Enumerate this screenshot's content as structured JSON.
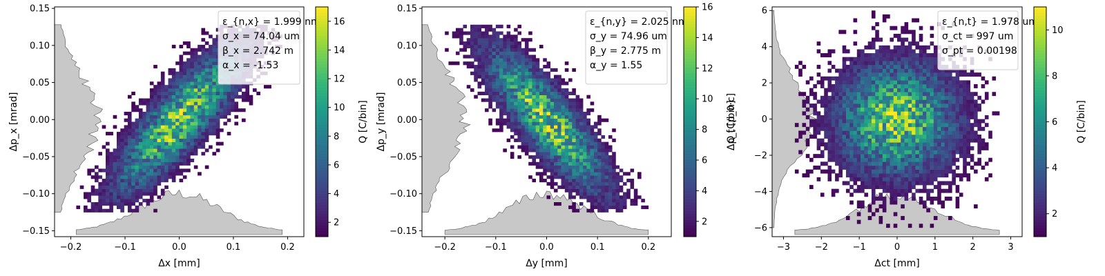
{
  "colorscale": [
    "#440154",
    "#482878",
    "#3e4a89",
    "#31688e",
    "#26828e",
    "#1f9e89",
    "#35b779",
    "#6ece58",
    "#b5de2b",
    "#fde725"
  ],
  "profile_color": "#c8c8c8",
  "chart_data": [
    {
      "type": "heatmap",
      "xlabel": "Δx [mm]",
      "ylabel": "Δp_x [mrad]",
      "colorbar_label": "Q [C/bin]",
      "xlim": [
        -0.23,
        0.23
      ],
      "ylim": [
        -0.158,
        0.152
      ],
      "xticks": [
        -0.2,
        -0.1,
        0.0,
        0.1,
        0.2
      ],
      "xtick_labels": [
        "−0.2",
        "−0.1",
        "0.0",
        "0.1",
        "0.2"
      ],
      "yticks": [
        -0.15,
        -0.1,
        -0.05,
        0.0,
        0.05,
        0.1,
        0.15
      ],
      "ytick_labels": [
        "−0.15",
        "−0.10",
        "−0.05",
        "0.00",
        "0.05",
        "0.10",
        "0.15"
      ],
      "clim": [
        1,
        17
      ],
      "cticks": [
        2,
        4,
        6,
        8,
        10,
        12,
        14,
        16
      ],
      "legend": [
        "ε_{n,x} = 1.999 nm",
        "σ_x = 74.04 um",
        "β_x = 2.742 m",
        "α_x = -1.53"
      ],
      "legend_position": "top-right",
      "distribution": {
        "sigma_x": 0.074,
        "sigma_y": 0.061,
        "correlation": 0.84,
        "x_span": [
          -0.19,
          0.19
        ],
        "y_span": [
          -0.125,
          0.128
        ]
      }
    },
    {
      "type": "heatmap",
      "xlabel": "Δy [mm]",
      "ylabel": "Δp_y [mrad]",
      "colorbar_label": "Q [C/bin]",
      "xlim": [
        -0.245,
        0.245
      ],
      "ylim": [
        -0.158,
        0.152
      ],
      "xticks": [
        -0.2,
        -0.1,
        0.0,
        0.1,
        0.2
      ],
      "xtick_labels": [
        "−0.2",
        "−0.1",
        "0.0",
        "0.1",
        "0.2"
      ],
      "yticks": [
        -0.15,
        -0.1,
        -0.05,
        0.0,
        0.05,
        0.1,
        0.15
      ],
      "ytick_labels": [
        "−0.15",
        "−0.10",
        "−0.05",
        "0.00",
        "0.05",
        "0.10",
        "0.15"
      ],
      "clim": [
        1,
        16
      ],
      "cticks": [
        2,
        4,
        6,
        8,
        10,
        12,
        14,
        16
      ],
      "legend": [
        "ε_{n,y} = 2.025 nm",
        "σ_y = 74.96 um",
        "β_y = 2.775 m",
        "α_y = 1.55"
      ],
      "legend_position": "top-right",
      "distribution": {
        "sigma_x": 0.075,
        "sigma_y": 0.061,
        "correlation": -0.84,
        "x_span": [
          -0.2,
          0.2
        ],
        "y_span": [
          -0.125,
          0.128
        ]
      }
    },
    {
      "type": "heatmap",
      "xlabel": "Δct [mm]",
      "ylabel": "Δp_t [p_0·c]",
      "colorbar_label": "Q [C/bin]",
      "xlim": [
        -3.3,
        3.3
      ],
      "ylim": [
        -6.5,
        6.2
      ],
      "xticks": [
        -3,
        -2,
        -1,
        0,
        1,
        2,
        3
      ],
      "xtick_labels": [
        "−3",
        "−2",
        "−1",
        "0",
        "1",
        "2",
        "3"
      ],
      "yticks": [
        -6,
        -4,
        -2,
        0,
        2,
        4,
        6
      ],
      "ytick_labels": [
        "−6",
        "−4",
        "−2",
        "0",
        "2",
        "4",
        "6"
      ],
      "clim": [
        1,
        11
      ],
      "cticks": [
        2,
        4,
        6,
        8,
        10
      ],
      "legend": [
        "ε_{n,t} = 1.978 um",
        "σ_ct = 997 um",
        "σ_pt = 0.00198"
      ],
      "legend_position": "top-right",
      "distribution": {
        "sigma_x": 0.997,
        "sigma_y": 1.98,
        "correlation": 0.0,
        "x_span": [
          -2.7,
          2.7
        ],
        "y_span": [
          -6.0,
          6.0
        ]
      }
    }
  ]
}
